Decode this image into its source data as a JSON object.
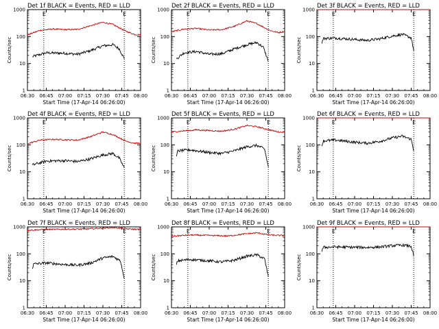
{
  "chart_data": [
    {
      "type": "line",
      "title": "Det 1f BLACK = Events, RED = LLD",
      "xlabel": "Start Time (17-Apr-14 06:26:00)",
      "ylabel": "Counts/sec",
      "x_ticks": [
        "06:30",
        "06:45",
        "07:00",
        "07:15",
        "07:30",
        "07:45",
        "08:00"
      ],
      "y_ticks": [
        "1",
        "10",
        "100",
        "1000"
      ],
      "y_scale": "log",
      "ylim": [
        1,
        1000
      ],
      "event_markers": [
        {
          "time": "06:43",
          "label": "E"
        },
        {
          "time": "07:47",
          "label": "E"
        }
      ],
      "series": [
        {
          "color": "#000000",
          "points": [
            [
              "06:34",
              18
            ],
            [
              "06:45",
              25
            ],
            [
              "07:00",
              24
            ],
            [
              "07:10",
              22
            ],
            [
              "07:20",
              30
            ],
            [
              "07:30",
              45
            ],
            [
              "07:38",
              50
            ],
            [
              "07:43",
              35
            ],
            [
              "07:47",
              15
            ]
          ]
        },
        {
          "color": "#cc0000",
          "points": [
            [
              "06:30",
              115
            ],
            [
              "06:40",
              170
            ],
            [
              "06:50",
              190
            ],
            [
              "07:00",
              180
            ],
            [
              "07:10",
              185
            ],
            [
              "07:20",
              250
            ],
            [
              "07:30",
              340
            ],
            [
              "07:38",
              280
            ],
            [
              "07:48",
              160
            ],
            [
              "07:55",
              120
            ],
            [
              "08:00",
              115
            ]
          ]
        }
      ]
    },
    {
      "type": "line",
      "title": "Det 2f BLACK = Events, RED = LLD",
      "xlabel": "Start Time (17-Apr-14 06:26:00)",
      "ylabel": "Counts/sec",
      "x_ticks": [
        "06:30",
        "06:45",
        "07:00",
        "07:15",
        "07:30",
        "07:45",
        "08:00"
      ],
      "y_ticks": [
        "1",
        "10",
        "100",
        "1000"
      ],
      "y_scale": "log",
      "ylim": [
        1,
        1000
      ],
      "event_markers": [
        {
          "time": "06:43",
          "label": "E"
        },
        {
          "time": "07:47",
          "label": "E"
        }
      ],
      "series": [
        {
          "color": "#000000",
          "points": [
            [
              "06:34",
              15
            ],
            [
              "06:40",
              25
            ],
            [
              "06:50",
              28
            ],
            [
              "07:00",
              22
            ],
            [
              "07:10",
              23
            ],
            [
              "07:20",
              35
            ],
            [
              "07:30",
              50
            ],
            [
              "07:38",
              60
            ],
            [
              "07:43",
              40
            ],
            [
              "07:47",
              12
            ]
          ]
        },
        {
          "color": "#cc0000",
          "points": [
            [
              "06:30",
              150
            ],
            [
              "06:40",
              190
            ],
            [
              "06:50",
              200
            ],
            [
              "07:00",
              175
            ],
            [
              "07:10",
              180
            ],
            [
              "07:20",
              240
            ],
            [
              "07:30",
              380
            ],
            [
              "07:38",
              300
            ],
            [
              "07:48",
              170
            ],
            [
              "07:55",
              140
            ],
            [
              "08:00",
              155
            ]
          ]
        }
      ]
    },
    {
      "type": "line",
      "title": "Det 3f BLACK = Events, RED = LLD",
      "xlabel": "Start Time (17-Apr-14 06:26:00)",
      "ylabel": "Counts/sec",
      "x_ticks": [
        "06:30",
        "06:45",
        "07:00",
        "07:15",
        "07:30",
        "07:45",
        "08:00"
      ],
      "y_ticks": [
        "1",
        "10",
        "100",
        "1000"
      ],
      "y_scale": "log",
      "ylim": [
        1,
        1000
      ],
      "event_markers": [
        {
          "time": "06:43",
          "label": "E"
        },
        {
          "time": "07:47",
          "label": "E"
        }
      ],
      "series": [
        {
          "color": "#000000",
          "points": [
            [
              "06:34",
              55
            ],
            [
              "06:35",
              85
            ],
            [
              "06:45",
              88
            ],
            [
              "07:00",
              78
            ],
            [
              "07:10",
              72
            ],
            [
              "07:20",
              82
            ],
            [
              "07:30",
              105
            ],
            [
              "07:38",
              120
            ],
            [
              "07:45",
              90
            ],
            [
              "07:47",
              30
            ]
          ]
        },
        {
          "color": "#cc0000",
          "points": [
            [
              "06:30",
              1000
            ],
            [
              "08:00",
              1000
            ]
          ]
        }
      ]
    },
    {
      "type": "line",
      "title": "Det 4f BLACK = Events, RED = LLD",
      "xlabel": "Start Time (17-Apr-14 06:26:00)",
      "ylabel": "Counts/sec",
      "x_ticks": [
        "06:30",
        "06:45",
        "07:00",
        "07:15",
        "07:30",
        "07:45",
        "08:00"
      ],
      "y_ticks": [
        "1",
        "10",
        "100",
        "1000"
      ],
      "y_scale": "log",
      "ylim": [
        1,
        1000
      ],
      "event_markers": [
        {
          "time": "06:43",
          "label": "E"
        },
        {
          "time": "07:47",
          "label": "E"
        }
      ],
      "series": [
        {
          "color": "#000000",
          "points": [
            [
              "06:34",
              18
            ],
            [
              "06:45",
              25
            ],
            [
              "07:00",
              26
            ],
            [
              "07:10",
              24
            ],
            [
              "07:20",
              30
            ],
            [
              "07:30",
              42
            ],
            [
              "07:38",
              48
            ],
            [
              "07:43",
              32
            ],
            [
              "07:47",
              14
            ]
          ]
        },
        {
          "color": "#cc0000",
          "points": [
            [
              "06:30",
              110
            ],
            [
              "06:40",
              150
            ],
            [
              "06:50",
              160
            ],
            [
              "07:00",
              155
            ],
            [
              "07:10",
              150
            ],
            [
              "07:20",
              200
            ],
            [
              "07:30",
              300
            ],
            [
              "07:38",
              240
            ],
            [
              "07:48",
              140
            ],
            [
              "07:55",
              115
            ],
            [
              "08:00",
              115
            ]
          ]
        }
      ]
    },
    {
      "type": "line",
      "title": "Det 5f BLACK = Events, RED = LLD",
      "xlabel": "Start Time (17-Apr-14 06:26:00)",
      "ylabel": "Counts/sec",
      "x_ticks": [
        "06:30",
        "06:45",
        "07:00",
        "07:15",
        "07:30",
        "07:45",
        "08:00"
      ],
      "y_ticks": [
        "1",
        "10",
        "100",
        "1000"
      ],
      "y_scale": "log",
      "ylim": [
        1,
        1000
      ],
      "event_markers": [
        {
          "time": "06:43",
          "label": "E"
        },
        {
          "time": "07:47",
          "label": "E"
        }
      ],
      "series": [
        {
          "color": "#000000",
          "points": [
            [
              "06:34",
              38
            ],
            [
              "06:35",
              60
            ],
            [
              "06:45",
              65
            ],
            [
              "07:00",
              52
            ],
            [
              "07:10",
              48
            ],
            [
              "07:20",
              60
            ],
            [
              "07:30",
              85
            ],
            [
              "07:38",
              95
            ],
            [
              "07:44",
              70
            ],
            [
              "07:47",
              15
            ]
          ]
        },
        {
          "color": "#cc0000",
          "points": [
            [
              "06:30",
              300
            ],
            [
              "06:40",
              330
            ],
            [
              "06:50",
              360
            ],
            [
              "07:00",
              340
            ],
            [
              "07:10",
              320
            ],
            [
              "07:20",
              380
            ],
            [
              "07:30",
              520
            ],
            [
              "07:38",
              470
            ],
            [
              "07:48",
              360
            ],
            [
              "07:55",
              300
            ],
            [
              "08:00",
              295
            ]
          ]
        }
      ]
    },
    {
      "type": "line",
      "title": "Det 6f BLACK = Events, RED = LLD",
      "xlabel": "Start Time (17-Apr-14 06:26:00)",
      "ylabel": "Counts/sec",
      "x_ticks": [
        "06:30",
        "06:45",
        "07:00",
        "07:15",
        "07:30",
        "07:45",
        "08:00"
      ],
      "y_ticks": [
        "1",
        "10",
        "100",
        "1000"
      ],
      "y_scale": "log",
      "ylim": [
        1,
        1000
      ],
      "event_markers": [
        {
          "time": "06:43",
          "label": "E"
        },
        {
          "time": "07:47",
          "label": "E"
        }
      ],
      "series": [
        {
          "color": "#000000",
          "points": [
            [
              "06:34",
              90
            ],
            [
              "06:35",
              140
            ],
            [
              "06:45",
              150
            ],
            [
              "07:00",
              125
            ],
            [
              "07:10",
              115
            ],
            [
              "07:20",
              135
            ],
            [
              "07:30",
              180
            ],
            [
              "07:38",
              210
            ],
            [
              "07:45",
              160
            ],
            [
              "07:47",
              60
            ]
          ]
        },
        {
          "color": "#cc0000",
          "points": [
            [
              "06:30",
              1000
            ],
            [
              "08:00",
              1000
            ]
          ]
        }
      ]
    },
    {
      "type": "line",
      "title": "Det 7f BLACK = Events, RED = LLD",
      "xlabel": "Start Time (17-Apr-14 06:26:00)",
      "ylabel": "Counts/sec",
      "x_ticks": [
        "06:30",
        "06:45",
        "07:00",
        "07:15",
        "07:30",
        "07:45",
        "08:00"
      ],
      "y_ticks": [
        "1",
        "10",
        "100",
        "1000"
      ],
      "y_scale": "log",
      "ylim": [
        1,
        1000
      ],
      "event_markers": [
        {
          "time": "06:43",
          "label": "E"
        },
        {
          "time": "07:47",
          "label": "E"
        }
      ],
      "series": [
        {
          "color": "#000000",
          "points": [
            [
              "06:34",
              28
            ],
            [
              "06:35",
              42
            ],
            [
              "06:45",
              46
            ],
            [
              "07:00",
              40
            ],
            [
              "07:10",
              38
            ],
            [
              "07:20",
              45
            ],
            [
              "07:30",
              70
            ],
            [
              "07:38",
              80
            ],
            [
              "07:44",
              55
            ],
            [
              "07:47",
              12
            ]
          ]
        },
        {
          "color": "#cc0000",
          "points": [
            [
              "06:30",
              750
            ],
            [
              "06:45",
              800
            ],
            [
              "07:00",
              820
            ],
            [
              "07:15",
              830
            ],
            [
              "07:30",
              900
            ],
            [
              "07:38",
              950
            ],
            [
              "07:48",
              850
            ],
            [
              "08:00",
              800
            ]
          ]
        }
      ]
    },
    {
      "type": "line",
      "title": "Det 8f BLACK = Events, RED = LLD",
      "xlabel": "Start Time (17-Apr-14 06:26:00)",
      "ylabel": "Counts/sec",
      "x_ticks": [
        "06:30",
        "06:45",
        "07:00",
        "07:15",
        "07:30",
        "07:45",
        "08:00"
      ],
      "y_ticks": [
        "1",
        "10",
        "100",
        "1000"
      ],
      "y_scale": "log",
      "ylim": [
        1,
        1000
      ],
      "event_markers": [
        {
          "time": "06:43",
          "label": "E"
        },
        {
          "time": "07:47",
          "label": "E"
        }
      ],
      "series": [
        {
          "color": "#000000",
          "points": [
            [
              "06:34",
              40
            ],
            [
              "06:35",
              55
            ],
            [
              "06:45",
              62
            ],
            [
              "07:00",
              55
            ],
            [
              "07:10",
              50
            ],
            [
              "07:20",
              58
            ],
            [
              "07:30",
              82
            ],
            [
              "07:38",
              92
            ],
            [
              "07:44",
              65
            ],
            [
              "07:47",
              14
            ]
          ]
        },
        {
          "color": "#cc0000",
          "points": [
            [
              "06:30",
              450
            ],
            [
              "06:45",
              500
            ],
            [
              "07:00",
              480
            ],
            [
              "07:15",
              460
            ],
            [
              "07:30",
              560
            ],
            [
              "07:38",
              600
            ],
            [
              "07:48",
              500
            ],
            [
              "08:00",
              470
            ]
          ]
        }
      ]
    },
    {
      "type": "line",
      "title": "Det 9f BLACK = Events, RED = LLD",
      "xlabel": "Start Time (17-Apr-14 06:26:00)",
      "ylabel": "Counts/sec",
      "x_ticks": [
        "06:30",
        "06:45",
        "07:00",
        "07:15",
        "07:30",
        "07:45",
        "08:00"
      ],
      "y_ticks": [
        "1",
        "10",
        "100",
        "1000"
      ],
      "y_scale": "log",
      "ylim": [
        1,
        1000
      ],
      "event_markers": [
        {
          "time": "06:43",
          "label": "E"
        },
        {
          "time": "07:47",
          "label": "E"
        }
      ],
      "series": [
        {
          "color": "#000000",
          "points": [
            [
              "06:34",
              120
            ],
            [
              "06:35",
              175
            ],
            [
              "06:45",
              180
            ],
            [
              "07:00",
              175
            ],
            [
              "07:10",
              172
            ],
            [
              "07:20",
              180
            ],
            [
              "07:30",
              200
            ],
            [
              "07:38",
              210
            ],
            [
              "07:45",
              190
            ],
            [
              "07:47",
              80
            ]
          ]
        },
        {
          "color": "#cc0000",
          "points": [
            [
              "06:30",
              1000
            ],
            [
              "08:00",
              1000
            ]
          ]
        }
      ]
    }
  ]
}
